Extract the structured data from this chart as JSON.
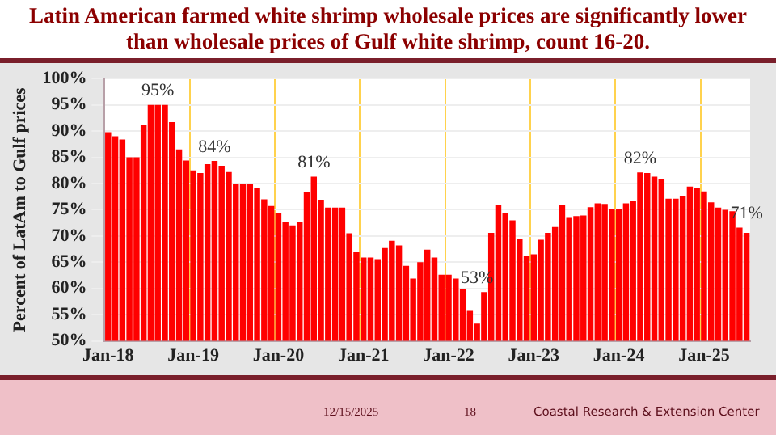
{
  "chart_data": {
    "type": "bar",
    "title": "Latin American farmed white shrimp wholesale prices are significantly lower than wholesale prices of Gulf white shrimp, count 16-20.",
    "ylabel": "Percent of LatAm to Gulf prices",
    "categories": [
      "Jan-18",
      null,
      null,
      null,
      null,
      null,
      null,
      null,
      null,
      null,
      null,
      null,
      "Jan-19",
      null,
      null,
      null,
      null,
      null,
      null,
      null,
      null,
      null,
      null,
      null,
      "Jan-20",
      null,
      null,
      null,
      null,
      null,
      null,
      null,
      null,
      null,
      null,
      null,
      "Jan-21",
      null,
      null,
      null,
      null,
      null,
      null,
      null,
      null,
      null,
      null,
      null,
      "Jan-22",
      null,
      null,
      null,
      null,
      null,
      null,
      null,
      null,
      null,
      null,
      null,
      "Jan-23",
      null,
      null,
      null,
      null,
      null,
      null,
      null,
      null,
      null,
      null,
      null,
      "Jan-24",
      null,
      null,
      null,
      null,
      null,
      null,
      null,
      null,
      null,
      null,
      null,
      "Jan-25",
      null,
      null,
      null,
      null,
      null,
      null
    ],
    "values": [
      89.8,
      89,
      88.4,
      85,
      85,
      91.2,
      95,
      95,
      95,
      91.7,
      86.5,
      84.4,
      82.5,
      82,
      83.7,
      84.3,
      83.4,
      82.2,
      80,
      80,
      80,
      79.1,
      77,
      75.7,
      74.3,
      72.7,
      72,
      72.6,
      78.3,
      81.3,
      76.9,
      75.4,
      75.4,
      75.4,
      70.5,
      66.9,
      65.9,
      65.9,
      65.6,
      67.7,
      69.1,
      68.2,
      64.3,
      61.9,
      65,
      67.4,
      65.9,
      62.6,
      62.6,
      61.9,
      59.9,
      55.7,
      53.3,
      59.3,
      70.6,
      76,
      74.3,
      73,
      69.4,
      66.2,
      66.5,
      69.3,
      70.6,
      71.7,
      75.9,
      73.6,
      73.8,
      73.9,
      75.5,
      76.2,
      76.1,
      75.2,
      75.2,
      76.2,
      76.7,
      82.1,
      82,
      81.3,
      80.9,
      77.1,
      77.1,
      77.7,
      79.4,
      79.1,
      78.5,
      76.4,
      75.4,
      75,
      74.7,
      71.6,
      70.6
    ],
    "color": "#ff0000",
    "ylim": [
      50,
      100
    ],
    "yticks": [
      {
        "value": 50,
        "label": "50%"
      },
      {
        "value": 55,
        "label": "55%"
      },
      {
        "value": 60,
        "label": "60%"
      },
      {
        "value": 65,
        "label": "65%"
      },
      {
        "value": 70,
        "label": "70%"
      },
      {
        "value": 75,
        "label": "75%"
      },
      {
        "value": 80,
        "label": "80%"
      },
      {
        "value": 85,
        "label": "85%"
      },
      {
        "value": 90,
        "label": "90%"
      },
      {
        "value": 95,
        "label": "95%"
      },
      {
        "value": 100,
        "label": "100%"
      }
    ],
    "grid": true,
    "legend": false,
    "value_labels": [
      null,
      null,
      null,
      null,
      null,
      null,
      null,
      "95%",
      null,
      null,
      null,
      null,
      null,
      null,
      null,
      "84%",
      null,
      null,
      null,
      null,
      null,
      null,
      null,
      null,
      null,
      null,
      null,
      null,
      null,
      "81%",
      null,
      null,
      null,
      null,
      null,
      null,
      null,
      null,
      null,
      null,
      null,
      null,
      null,
      null,
      null,
      null,
      null,
      null,
      null,
      null,
      null,
      null,
      "53%",
      null,
      null,
      null,
      null,
      null,
      null,
      null,
      null,
      null,
      null,
      null,
      null,
      null,
      null,
      null,
      null,
      null,
      null,
      null,
      null,
      null,
      null,
      "82%",
      null,
      null,
      null,
      null,
      null,
      null,
      null,
      null,
      null,
      null,
      null,
      null,
      null,
      null,
      "71%"
    ],
    "annotations": [
      "12/15/2025",
      "18",
      "Coastal Research & Extension Center"
    ]
  }
}
